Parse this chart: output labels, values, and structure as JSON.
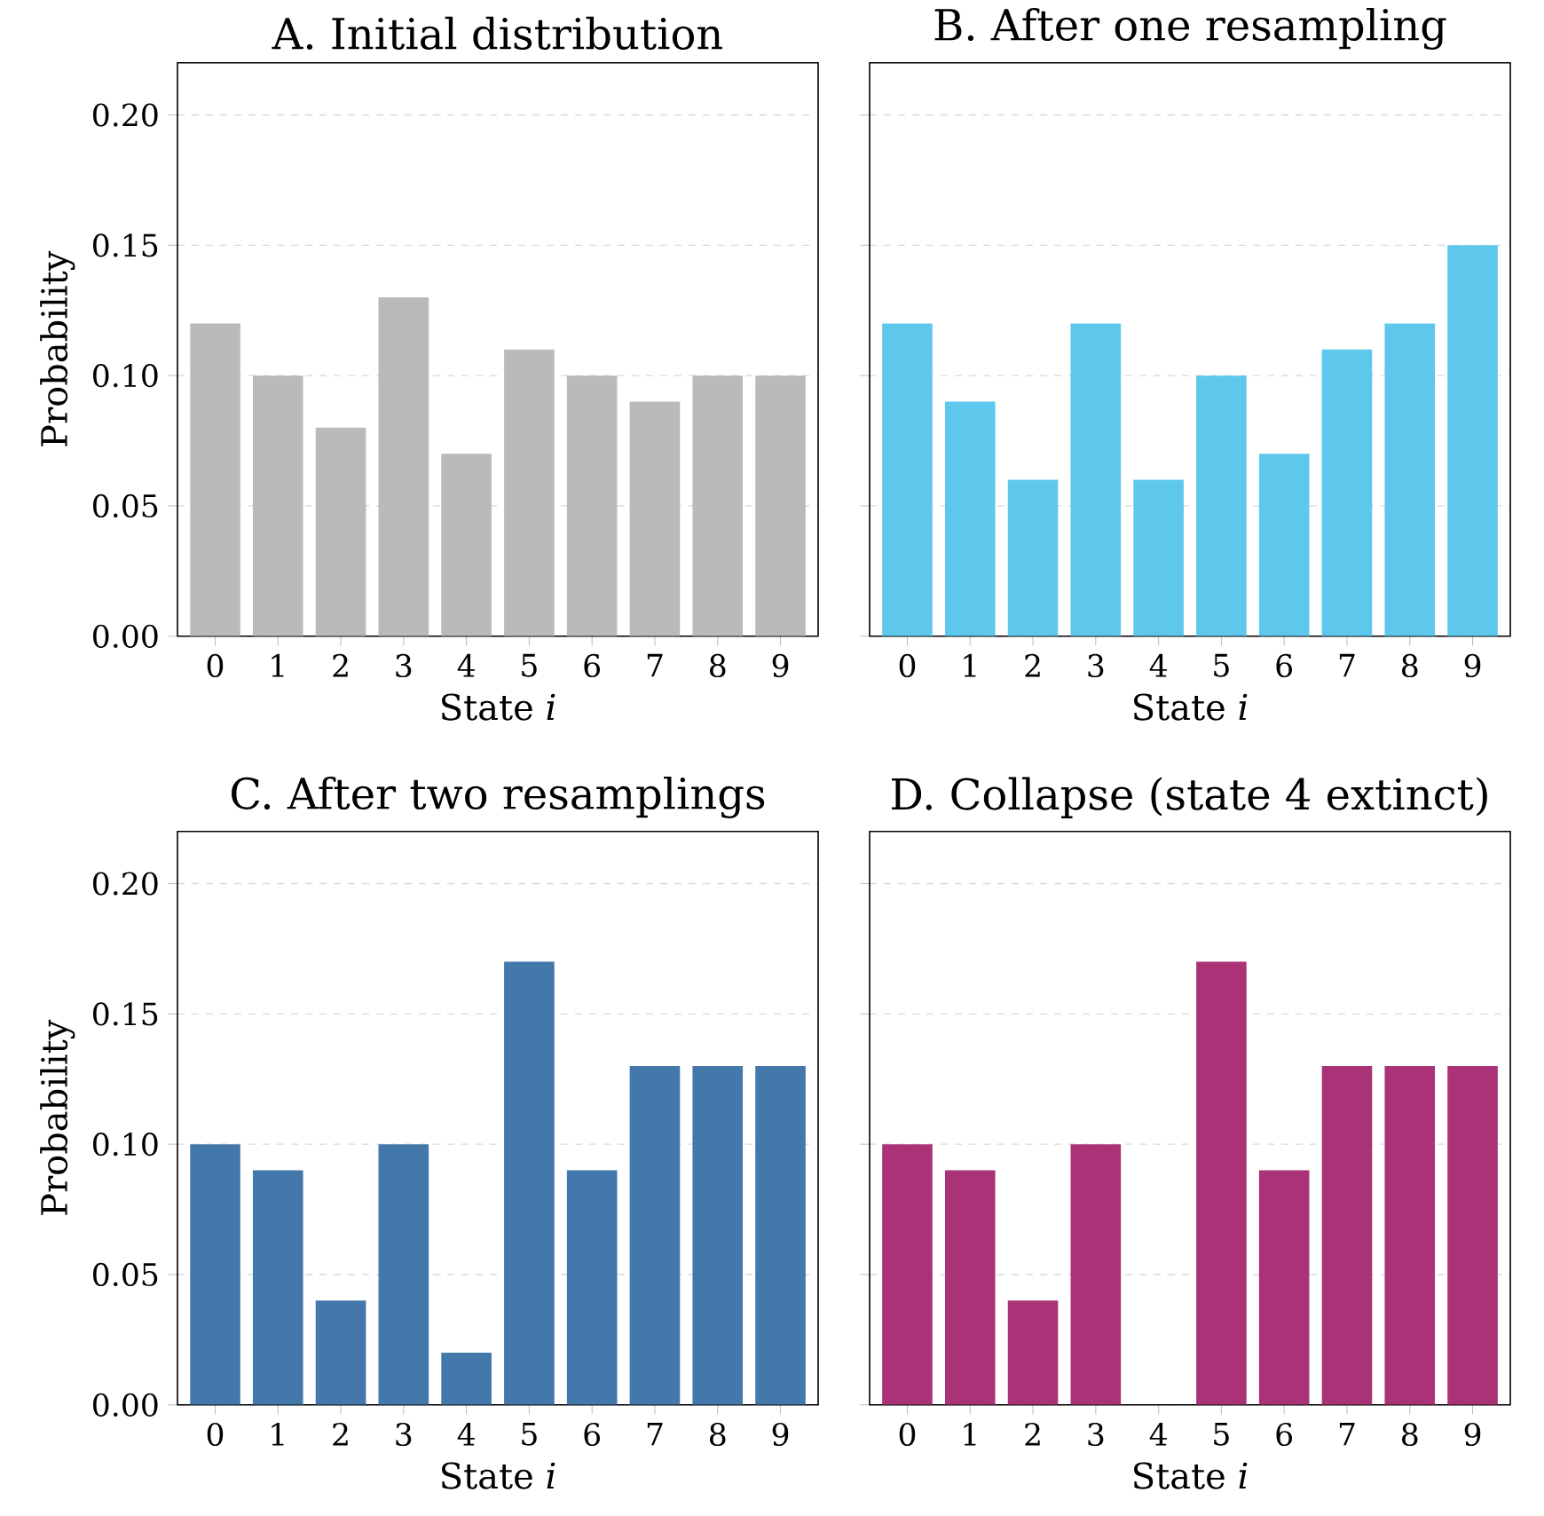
{
  "chart_data": [
    {
      "type": "bar",
      "title": "A. Initial distribution",
      "xlabel": "State *i*",
      "ylabel": "Probability",
      "categories": [
        "0",
        "1",
        "2",
        "3",
        "4",
        "5",
        "6",
        "7",
        "8",
        "9"
      ],
      "values": [
        0.12,
        0.1,
        0.08,
        0.13,
        0.07,
        0.11,
        0.1,
        0.09,
        0.1,
        0.1
      ],
      "color": "#bababa",
      "ylim": [
        0,
        0.22
      ],
      "yticks": [
        {
          "value": 0,
          "label": "0.00"
        },
        {
          "value": 0.05,
          "label": "0.05"
        },
        {
          "value": 0.1,
          "label": "0.10"
        },
        {
          "value": 0.15,
          "label": "0.15"
        },
        {
          "value": 0.2,
          "label": "0.20"
        }
      ],
      "grid": "y"
    },
    {
      "type": "bar",
      "title": "B. After one resampling",
      "xlabel": "State *i*",
      "categories": [
        "0",
        "1",
        "2",
        "3",
        "4",
        "5",
        "6",
        "7",
        "8",
        "9"
      ],
      "values": [
        0.12,
        0.09,
        0.06,
        0.12,
        0.06,
        0.1,
        0.07,
        0.11,
        0.12,
        0.15
      ],
      "color": "#5ec8ec",
      "ylim": [
        0,
        0.22
      ],
      "yticks": [
        {
          "value": 0,
          "label": null
        },
        {
          "value": 0.05,
          "label": null
        },
        {
          "value": 0.1,
          "label": null
        },
        {
          "value": 0.15,
          "label": null
        },
        {
          "value": 0.2,
          "label": null
        }
      ],
      "grid": "y",
      "tick_labels": "x"
    },
    {
      "type": "bar",
      "title": "C. After two resamplings",
      "xlabel": "State *i*",
      "ylabel": "Probability",
      "categories": [
        "0",
        "1",
        "2",
        "3",
        "4",
        "5",
        "6",
        "7",
        "8",
        "9"
      ],
      "values": [
        0.1,
        0.09,
        0.04,
        0.1,
        0.02,
        0.17,
        0.09,
        0.13,
        0.13,
        0.13
      ],
      "color": "#4477aa",
      "ylim": [
        0,
        0.22
      ],
      "yticks": [
        {
          "value": 0,
          "label": "0.00"
        },
        {
          "value": 0.05,
          "label": "0.05"
        },
        {
          "value": 0.1,
          "label": "0.10"
        },
        {
          "value": 0.15,
          "label": "0.15"
        },
        {
          "value": 0.2,
          "label": "0.20"
        }
      ],
      "grid": "y"
    },
    {
      "type": "bar",
      "title": "D. Collapse (state 4 extinct)",
      "xlabel": "State *i*",
      "categories": [
        "0",
        "1",
        "2",
        "3",
        "4",
        "5",
        "6",
        "7",
        "8",
        "9"
      ],
      "values": [
        0.1,
        0.09,
        0.04,
        0.1,
        0,
        0.17,
        0.09,
        0.13,
        0.13,
        0.13
      ],
      "color": "#aa3377",
      "ylim": [
        0,
        0.22
      ],
      "yticks": [
        {
          "value": 0,
          "label": null
        },
        {
          "value": 0.05,
          "label": null
        },
        {
          "value": 0.1,
          "label": null
        },
        {
          "value": 0.15,
          "label": null
        },
        {
          "value": 0.2,
          "label": null
        }
      ],
      "grid": "y",
      "tick_labels": "x"
    }
  ]
}
